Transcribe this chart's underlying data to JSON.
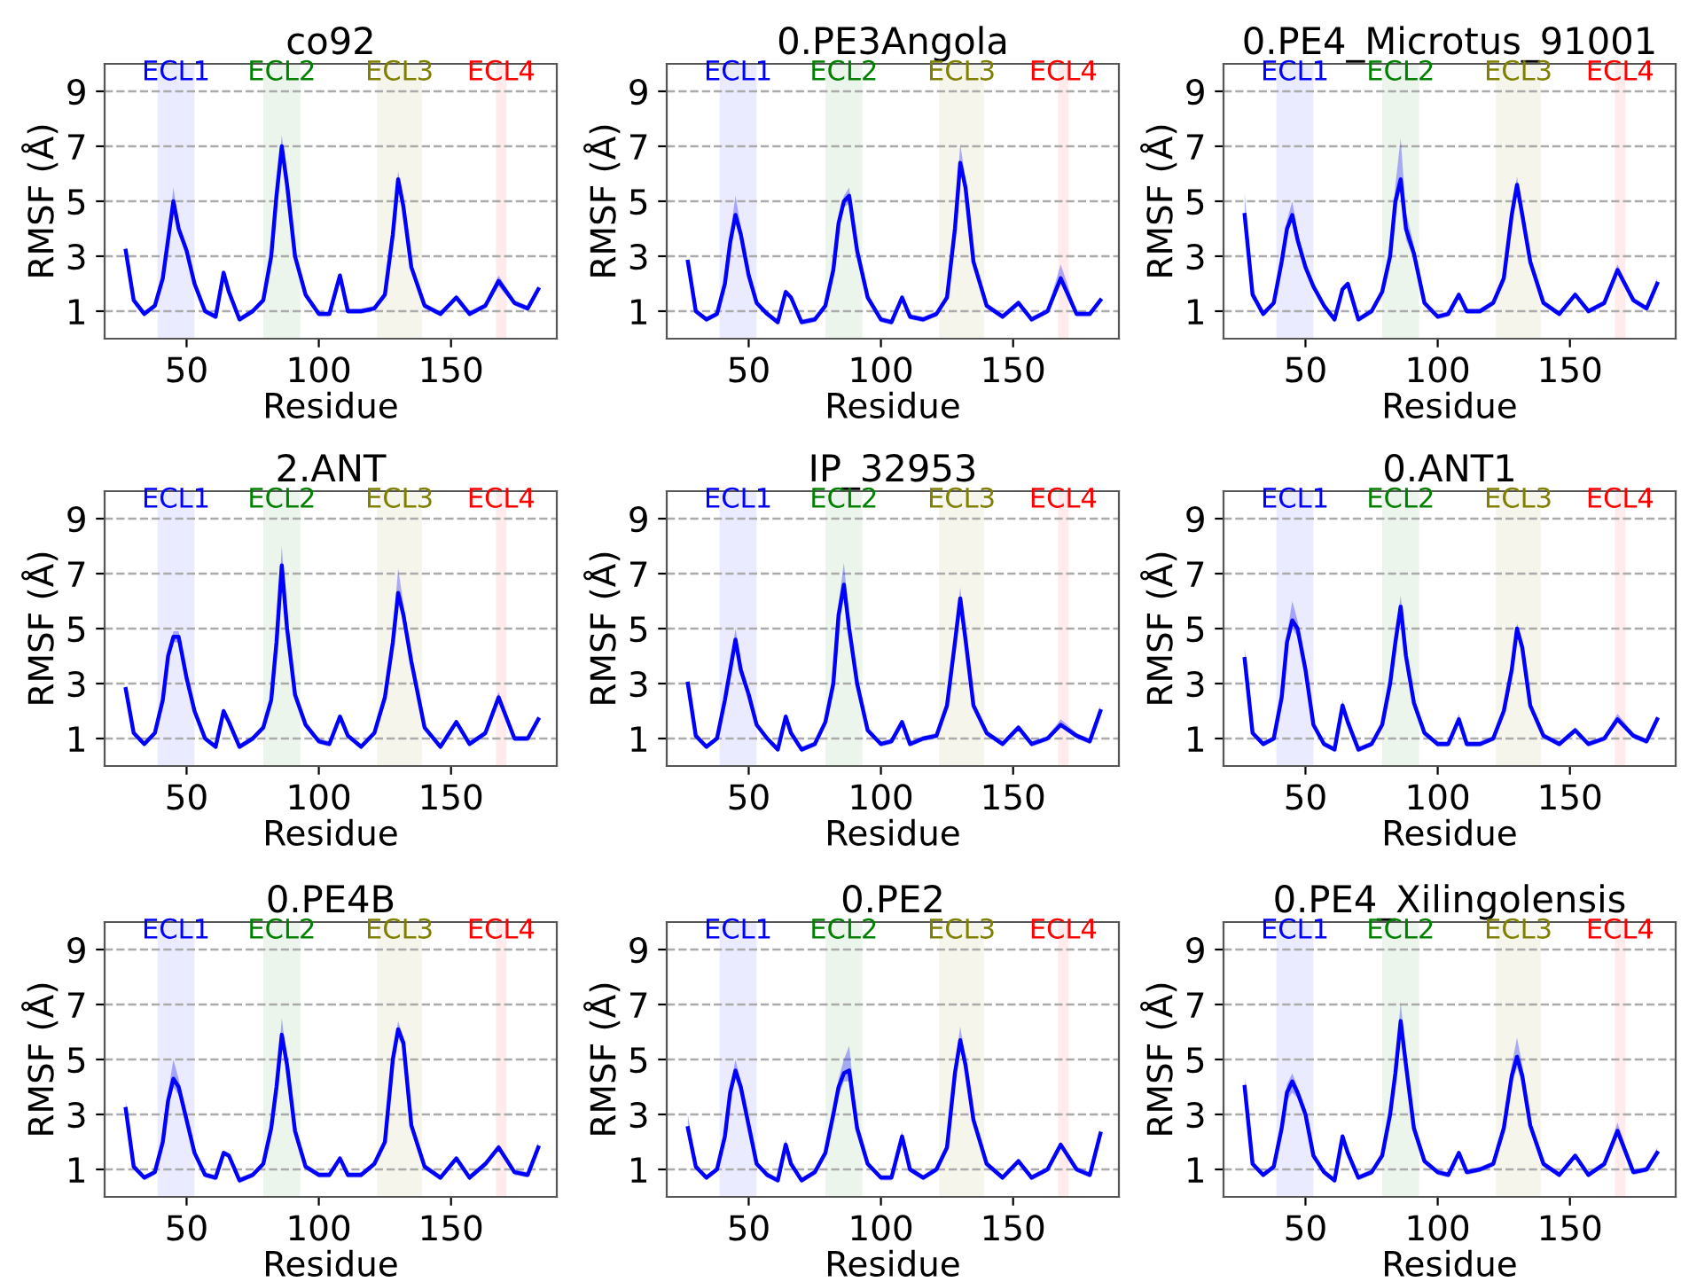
{
  "chart_data": [
    {
      "type": "line",
      "title": "co92",
      "xlabel": "Residue",
      "ylabel": "RMSF (Å)",
      "x": [
        27,
        30,
        34,
        38,
        41,
        43,
        45,
        47,
        50,
        53,
        57,
        61,
        64,
        66,
        70,
        75,
        79,
        82,
        84,
        86,
        88,
        91,
        95,
        100,
        104,
        108,
        111,
        116,
        121,
        125,
        128,
        130,
        132,
        135,
        140,
        146,
        152,
        157,
        163,
        168,
        174,
        179,
        183
      ],
      "xlim": [
        19,
        190
      ],
      "ylim": [
        0,
        10
      ],
      "xticks": [
        50,
        100,
        150
      ],
      "yticks": [
        1,
        3,
        5,
        7,
        9
      ],
      "grid": "y",
      "bands": [
        {
          "axis": "x",
          "from": 39,
          "to": 53,
          "label": "ECL1",
          "color": "#0000ff"
        },
        {
          "axis": "x",
          "from": 79,
          "to": 93,
          "label": "ECL2",
          "color": "#008000"
        },
        {
          "axis": "x",
          "from": 122,
          "to": 139,
          "label": "ECL3",
          "color": "#808000"
        },
        {
          "axis": "x",
          "from": 167,
          "to": 171,
          "label": "ECL4",
          "color": "#ff0000"
        }
      ],
      "series": [
        {
          "color": "#0000ff",
          "values": [
            3.2,
            1.4,
            0.9,
            1.2,
            2.2,
            3.6,
            5.0,
            4.0,
            3.2,
            2.0,
            1.0,
            0.8,
            2.4,
            1.7,
            0.7,
            1.0,
            1.4,
            3.0,
            5.2,
            7.0,
            5.6,
            3.0,
            1.6,
            0.9,
            0.9,
            2.3,
            1.0,
            1.0,
            1.1,
            1.6,
            3.8,
            5.8,
            4.8,
            2.6,
            1.2,
            0.9,
            1.5,
            0.9,
            1.2,
            2.1,
            1.3,
            1.1,
            1.8
          ],
          "upper": [
            3.4,
            1.5,
            1.0,
            1.3,
            2.3,
            3.8,
            5.5,
            4.2,
            3.3,
            2.1,
            1.1,
            0.9,
            2.5,
            1.8,
            0.8,
            1.1,
            1.5,
            3.1,
            5.4,
            7.4,
            5.8,
            3.1,
            1.7,
            1.0,
            1.0,
            2.4,
            1.1,
            1.1,
            1.2,
            1.7,
            3.9,
            6.1,
            5.0,
            2.7,
            1.3,
            1.0,
            1.6,
            1.0,
            1.3,
            2.3,
            1.4,
            1.2,
            1.9
          ],
          "lower": [
            3.0,
            1.3,
            0.8,
            1.1,
            2.1,
            3.4,
            4.7,
            3.8,
            3.1,
            1.9,
            0.9,
            0.7,
            2.3,
            1.6,
            0.6,
            0.9,
            1.3,
            2.9,
            5.0,
            6.7,
            5.4,
            2.9,
            1.5,
            0.8,
            0.8,
            2.2,
            0.9,
            0.9,
            1.0,
            1.5,
            3.7,
            5.5,
            4.6,
            2.5,
            1.1,
            0.8,
            1.4,
            0.8,
            1.1,
            1.9,
            1.2,
            1.0,
            1.7
          ]
        }
      ]
    },
    {
      "type": "line",
      "title": "0.PE3Angola",
      "xlabel": "Residue",
      "ylabel": "RMSF (Å)",
      "x": [
        27,
        30,
        34,
        38,
        41,
        43,
        45,
        47,
        50,
        53,
        57,
        61,
        64,
        66,
        70,
        75,
        79,
        82,
        84,
        86,
        88,
        91,
        95,
        100,
        104,
        108,
        111,
        116,
        121,
        125,
        128,
        130,
        132,
        135,
        140,
        146,
        152,
        157,
        163,
        168,
        174,
        179,
        183
      ],
      "xlim": [
        19,
        190
      ],
      "ylim": [
        0,
        10
      ],
      "xticks": [
        50,
        100,
        150
      ],
      "yticks": [
        1,
        3,
        5,
        7,
        9
      ],
      "grid": "y",
      "bands": [
        {
          "axis": "x",
          "from": 39,
          "to": 53,
          "label": "ECL1",
          "color": "#0000ff"
        },
        {
          "axis": "x",
          "from": 79,
          "to": 93,
          "label": "ECL2",
          "color": "#008000"
        },
        {
          "axis": "x",
          "from": 122,
          "to": 139,
          "label": "ECL3",
          "color": "#808000"
        },
        {
          "axis": "x",
          "from": 167,
          "to": 171,
          "label": "ECL4",
          "color": "#ff0000"
        }
      ],
      "series": [
        {
          "color": "#0000ff",
          "values": [
            2.8,
            1.0,
            0.7,
            0.9,
            2.0,
            3.5,
            4.5,
            3.8,
            2.3,
            1.3,
            0.9,
            0.6,
            1.7,
            1.5,
            0.6,
            0.7,
            1.2,
            2.5,
            4.2,
            5.0,
            5.2,
            3.2,
            1.5,
            0.7,
            0.6,
            1.5,
            0.8,
            0.7,
            0.9,
            1.5,
            4.0,
            6.4,
            5.5,
            2.8,
            1.2,
            0.8,
            1.3,
            0.7,
            1.0,
            2.2,
            0.9,
            0.9,
            1.4
          ],
          "upper": [
            2.9,
            1.1,
            0.8,
            1.0,
            2.1,
            3.8,
            5.2,
            4.1,
            2.4,
            1.4,
            1.0,
            0.7,
            1.8,
            1.6,
            0.7,
            0.8,
            1.3,
            2.6,
            4.4,
            5.2,
            5.5,
            3.4,
            1.6,
            0.8,
            0.7,
            1.6,
            0.9,
            0.8,
            1.0,
            1.6,
            4.2,
            7.1,
            5.8,
            2.9,
            1.3,
            0.9,
            1.4,
            0.8,
            1.1,
            2.7,
            1.0,
            1.0,
            1.5
          ],
          "lower": [
            2.7,
            0.9,
            0.6,
            0.8,
            1.9,
            3.3,
            4.2,
            3.6,
            2.2,
            1.2,
            0.8,
            0.5,
            1.6,
            1.4,
            0.5,
            0.6,
            1.1,
            2.4,
            4.0,
            4.8,
            4.9,
            3.0,
            1.4,
            0.6,
            0.5,
            1.4,
            0.7,
            0.6,
            0.8,
            1.4,
            3.8,
            6.1,
            5.2,
            2.7,
            1.1,
            0.7,
            1.2,
            0.6,
            0.9,
            2.0,
            0.8,
            0.8,
            1.3
          ]
        }
      ]
    },
    {
      "type": "line",
      "title": "0.PE4_Microtus_91001",
      "xlabel": "Residue",
      "ylabel": "RMSF (Å)",
      "x": [
        27,
        30,
        34,
        38,
        41,
        43,
        45,
        47,
        50,
        53,
        57,
        61,
        64,
        66,
        70,
        75,
        79,
        82,
        84,
        86,
        88,
        91,
        95,
        100,
        104,
        108,
        111,
        116,
        121,
        125,
        128,
        130,
        132,
        135,
        140,
        146,
        152,
        157,
        163,
        168,
        174,
        179,
        183
      ],
      "xlim": [
        19,
        190
      ],
      "ylim": [
        0,
        10
      ],
      "xticks": [
        50,
        100,
        150
      ],
      "yticks": [
        1,
        3,
        5,
        7,
        9
      ],
      "grid": "y",
      "bands": [
        {
          "axis": "x",
          "from": 39,
          "to": 53,
          "label": "ECL1",
          "color": "#0000ff"
        },
        {
          "axis": "x",
          "from": 79,
          "to": 93,
          "label": "ECL2",
          "color": "#008000"
        },
        {
          "axis": "x",
          "from": 122,
          "to": 139,
          "label": "ECL3",
          "color": "#808000"
        },
        {
          "axis": "x",
          "from": 167,
          "to": 171,
          "label": "ECL4",
          "color": "#ff0000"
        }
      ],
      "series": [
        {
          "color": "#0000ff",
          "values": [
            4.5,
            1.6,
            0.9,
            1.3,
            2.8,
            4.0,
            4.5,
            3.6,
            2.6,
            1.9,
            1.2,
            0.7,
            1.8,
            2.0,
            0.7,
            1.0,
            1.7,
            3.0,
            5.0,
            5.8,
            4.0,
            3.1,
            1.3,
            0.8,
            0.9,
            1.6,
            1.0,
            1.0,
            1.3,
            2.2,
            4.5,
            5.6,
            4.5,
            2.8,
            1.3,
            0.9,
            1.6,
            1.0,
            1.3,
            2.5,
            1.4,
            1.1,
            2.0
          ],
          "upper": [
            5.3,
            1.8,
            1.0,
            1.4,
            2.9,
            4.3,
            5.0,
            3.9,
            2.7,
            2.0,
            1.3,
            0.8,
            1.9,
            2.1,
            0.8,
            1.1,
            1.8,
            3.2,
            5.6,
            7.3,
            4.6,
            3.4,
            1.4,
            0.9,
            1.0,
            1.7,
            1.1,
            1.1,
            1.4,
            2.4,
            4.7,
            5.9,
            4.7,
            2.9,
            1.4,
            1.0,
            1.7,
            1.1,
            1.4,
            2.7,
            1.5,
            1.2,
            2.2
          ],
          "lower": [
            4.3,
            1.5,
            0.8,
            1.2,
            2.7,
            3.8,
            4.3,
            3.4,
            2.5,
            1.8,
            1.1,
            0.6,
            1.7,
            1.9,
            0.6,
            0.9,
            1.6,
            2.8,
            4.6,
            5.4,
            3.6,
            2.9,
            1.2,
            0.7,
            0.8,
            1.5,
            0.9,
            0.9,
            1.2,
            2.0,
            4.3,
            5.4,
            4.3,
            2.7,
            1.2,
            0.8,
            1.5,
            0.9,
            1.2,
            2.4,
            1.3,
            1.0,
            1.9
          ]
        }
      ]
    },
    {
      "type": "line",
      "title": "2.ANT",
      "xlabel": "Residue",
      "ylabel": "RMSF (Å)",
      "x": [
        27,
        30,
        34,
        38,
        41,
        43,
        45,
        47,
        50,
        53,
        57,
        61,
        64,
        66,
        70,
        75,
        79,
        82,
        84,
        86,
        88,
        91,
        95,
        100,
        104,
        108,
        111,
        116,
        121,
        125,
        128,
        130,
        132,
        135,
        140,
        146,
        152,
        157,
        163,
        168,
        174,
        179,
        183
      ],
      "xlim": [
        19,
        190
      ],
      "ylim": [
        0,
        10
      ],
      "xticks": [
        50,
        100,
        150
      ],
      "yticks": [
        1,
        3,
        5,
        7,
        9
      ],
      "grid": "y",
      "bands": [
        {
          "axis": "x",
          "from": 39,
          "to": 53,
          "label": "ECL1",
          "color": "#0000ff"
        },
        {
          "axis": "x",
          "from": 79,
          "to": 93,
          "label": "ECL2",
          "color": "#008000"
        },
        {
          "axis": "x",
          "from": 122,
          "to": 139,
          "label": "ECL3",
          "color": "#808000"
        },
        {
          "axis": "x",
          "from": 167,
          "to": 171,
          "label": "ECL4",
          "color": "#ff0000"
        }
      ],
      "series": [
        {
          "color": "#0000ff",
          "values": [
            2.8,
            1.2,
            0.8,
            1.2,
            2.4,
            4.0,
            4.7,
            4.7,
            3.2,
            2.0,
            1.0,
            0.7,
            2.0,
            1.6,
            0.7,
            1.0,
            1.4,
            2.4,
            4.5,
            7.3,
            5.0,
            2.6,
            1.5,
            0.9,
            0.8,
            1.8,
            1.1,
            0.7,
            1.2,
            2.5,
            4.5,
            6.3,
            5.5,
            3.8,
            1.4,
            0.7,
            1.6,
            0.8,
            1.2,
            2.5,
            1.0,
            1.0,
            1.7
          ],
          "upper": [
            2.9,
            1.3,
            0.9,
            1.3,
            2.5,
            4.1,
            4.9,
            4.9,
            3.3,
            2.1,
            1.1,
            0.8,
            2.1,
            1.7,
            0.8,
            1.1,
            1.5,
            2.6,
            4.8,
            8.0,
            5.2,
            2.7,
            1.6,
            1.0,
            0.9,
            1.9,
            1.2,
            0.8,
            1.3,
            2.7,
            4.8,
            7.2,
            5.9,
            4.0,
            1.5,
            0.8,
            1.7,
            0.9,
            1.3,
            2.7,
            1.1,
            1.1,
            1.8
          ],
          "lower": [
            2.7,
            1.1,
            0.7,
            1.1,
            2.3,
            3.9,
            4.5,
            4.5,
            3.1,
            1.9,
            0.9,
            0.6,
            1.9,
            1.5,
            0.6,
            0.9,
            1.3,
            2.3,
            4.3,
            7.0,
            4.8,
            2.5,
            1.4,
            0.8,
            0.7,
            1.7,
            1.0,
            0.6,
            1.1,
            2.3,
            4.3,
            6.0,
            5.2,
            3.6,
            1.3,
            0.6,
            1.5,
            0.7,
            1.1,
            2.3,
            0.9,
            0.9,
            1.6
          ]
        }
      ]
    },
    {
      "type": "line",
      "title": "IP_32953",
      "xlabel": "Residue",
      "ylabel": "RMSF (Å)",
      "x": [
        27,
        30,
        34,
        38,
        41,
        43,
        45,
        47,
        50,
        53,
        57,
        61,
        64,
        66,
        70,
        75,
        79,
        82,
        84,
        86,
        88,
        91,
        95,
        100,
        104,
        108,
        111,
        116,
        121,
        125,
        128,
        130,
        132,
        135,
        140,
        146,
        152,
        157,
        163,
        168,
        174,
        179,
        183
      ],
      "xlim": [
        19,
        190
      ],
      "ylim": [
        0,
        10
      ],
      "xticks": [
        50,
        100,
        150
      ],
      "yticks": [
        1,
        3,
        5,
        7,
        9
      ],
      "grid": "y",
      "bands": [
        {
          "axis": "x",
          "from": 39,
          "to": 53,
          "label": "ECL1",
          "color": "#0000ff"
        },
        {
          "axis": "x",
          "from": 79,
          "to": 93,
          "label": "ECL2",
          "color": "#008000"
        },
        {
          "axis": "x",
          "from": 122,
          "to": 139,
          "label": "ECL3",
          "color": "#808000"
        },
        {
          "axis": "x",
          "from": 167,
          "to": 171,
          "label": "ECL4",
          "color": "#ff0000"
        }
      ],
      "series": [
        {
          "color": "#0000ff",
          "values": [
            3.0,
            1.1,
            0.7,
            1.0,
            2.4,
            3.5,
            4.6,
            3.5,
            2.6,
            1.5,
            1.0,
            0.6,
            1.8,
            1.2,
            0.6,
            0.8,
            1.6,
            3.0,
            5.5,
            6.6,
            5.0,
            3.0,
            1.3,
            0.8,
            0.9,
            1.6,
            0.8,
            1.0,
            1.1,
            2.2,
            4.5,
            6.1,
            4.6,
            2.2,
            1.2,
            0.8,
            1.4,
            0.8,
            1.0,
            1.5,
            1.1,
            0.9,
            2.0
          ],
          "upper": [
            3.1,
            1.2,
            0.8,
            1.1,
            2.5,
            3.7,
            5.0,
            3.8,
            2.7,
            1.6,
            1.1,
            0.7,
            1.9,
            1.3,
            0.7,
            0.9,
            1.7,
            3.2,
            5.9,
            7.4,
            5.4,
            3.2,
            1.4,
            0.9,
            1.0,
            1.7,
            0.9,
            1.1,
            1.2,
            2.3,
            4.7,
            6.5,
            4.8,
            2.3,
            1.3,
            0.9,
            1.5,
            0.9,
            1.1,
            1.7,
            1.2,
            1.0,
            2.2
          ],
          "lower": [
            2.9,
            1.0,
            0.6,
            0.9,
            2.3,
            3.3,
            4.3,
            3.3,
            2.5,
            1.4,
            0.9,
            0.5,
            1.7,
            1.1,
            0.5,
            0.7,
            1.5,
            2.8,
            5.1,
            6.1,
            4.7,
            2.8,
            1.2,
            0.7,
            0.8,
            1.5,
            0.7,
            0.9,
            1.0,
            2.1,
            4.3,
            5.8,
            4.4,
            2.1,
            1.1,
            0.7,
            1.3,
            0.7,
            0.9,
            1.4,
            1.0,
            0.8,
            1.9
          ]
        }
      ]
    },
    {
      "type": "line",
      "title": "0.ANT1",
      "xlabel": "Residue",
      "ylabel": "RMSF (Å)",
      "x": [
        27,
        30,
        34,
        38,
        41,
        43,
        45,
        47,
        50,
        53,
        57,
        61,
        64,
        66,
        70,
        75,
        79,
        82,
        84,
        86,
        88,
        91,
        95,
        100,
        104,
        108,
        111,
        116,
        121,
        125,
        128,
        130,
        132,
        135,
        140,
        146,
        152,
        157,
        163,
        168,
        174,
        179,
        183
      ],
      "xlim": [
        19,
        190
      ],
      "ylim": [
        0,
        10
      ],
      "xticks": [
        50,
        100,
        150
      ],
      "yticks": [
        1,
        3,
        5,
        7,
        9
      ],
      "grid": "y",
      "bands": [
        {
          "axis": "x",
          "from": 39,
          "to": 53,
          "label": "ECL1",
          "color": "#0000ff"
        },
        {
          "axis": "x",
          "from": 79,
          "to": 93,
          "label": "ECL2",
          "color": "#008000"
        },
        {
          "axis": "x",
          "from": 122,
          "to": 139,
          "label": "ECL3",
          "color": "#808000"
        },
        {
          "axis": "x",
          "from": 167,
          "to": 171,
          "label": "ECL4",
          "color": "#ff0000"
        }
      ],
      "series": [
        {
          "color": "#0000ff",
          "values": [
            3.9,
            1.2,
            0.8,
            1.0,
            2.5,
            4.5,
            5.3,
            5.0,
            3.5,
            1.5,
            0.8,
            0.6,
            2.2,
            1.6,
            0.6,
            0.8,
            1.5,
            3.0,
            4.5,
            5.8,
            4.0,
            2.3,
            1.2,
            0.8,
            0.8,
            1.7,
            0.8,
            0.8,
            1.0,
            2.0,
            3.5,
            5.0,
            4.3,
            2.2,
            1.1,
            0.8,
            1.3,
            0.8,
            1.0,
            1.7,
            1.1,
            0.9,
            1.7
          ],
          "upper": [
            4.3,
            1.3,
            0.9,
            1.1,
            2.6,
            4.8,
            6.0,
            5.3,
            3.7,
            1.6,
            0.9,
            0.7,
            2.4,
            1.7,
            0.7,
            0.9,
            1.6,
            3.2,
            4.7,
            6.2,
            4.3,
            2.4,
            1.3,
            0.9,
            0.9,
            1.9,
            0.9,
            0.9,
            1.1,
            2.2,
            3.7,
            5.2,
            4.5,
            2.3,
            1.2,
            0.9,
            1.4,
            0.9,
            1.1,
            1.9,
            1.2,
            1.0,
            1.8
          ],
          "lower": [
            3.7,
            1.1,
            0.7,
            0.9,
            2.4,
            4.3,
            5.0,
            4.7,
            3.3,
            1.4,
            0.7,
            0.5,
            2.1,
            1.5,
            0.5,
            0.7,
            1.4,
            2.8,
            4.3,
            5.5,
            3.8,
            2.2,
            1.1,
            0.7,
            0.7,
            1.6,
            0.7,
            0.7,
            0.9,
            1.9,
            3.3,
            4.8,
            4.1,
            2.1,
            1.0,
            0.7,
            1.2,
            0.7,
            0.9,
            1.6,
            1.0,
            0.8,
            1.6
          ]
        }
      ]
    },
    {
      "type": "line",
      "title": "0.PE4B",
      "xlabel": "Residue",
      "ylabel": "RMSF (Å)",
      "x": [
        27,
        30,
        34,
        38,
        41,
        43,
        45,
        47,
        50,
        53,
        57,
        61,
        64,
        66,
        70,
        75,
        79,
        82,
        84,
        86,
        88,
        91,
        95,
        100,
        104,
        108,
        111,
        116,
        121,
        125,
        128,
        130,
        132,
        135,
        140,
        146,
        152,
        157,
        163,
        168,
        174,
        179,
        183
      ],
      "xlim": [
        19,
        190
      ],
      "ylim": [
        0,
        10
      ],
      "xticks": [
        50,
        100,
        150
      ],
      "yticks": [
        1,
        3,
        5,
        7,
        9
      ],
      "grid": "y",
      "bands": [
        {
          "axis": "x",
          "from": 39,
          "to": 53,
          "label": "ECL1",
          "color": "#0000ff"
        },
        {
          "axis": "x",
          "from": 79,
          "to": 93,
          "label": "ECL2",
          "color": "#008000"
        },
        {
          "axis": "x",
          "from": 122,
          "to": 139,
          "label": "ECL3",
          "color": "#808000"
        },
        {
          "axis": "x",
          "from": 167,
          "to": 171,
          "label": "ECL4",
          "color": "#ff0000"
        }
      ],
      "series": [
        {
          "color": "#0000ff",
          "values": [
            3.2,
            1.1,
            0.7,
            0.9,
            2.0,
            3.5,
            4.3,
            4.0,
            2.8,
            1.6,
            0.8,
            0.7,
            1.6,
            1.5,
            0.6,
            0.8,
            1.2,
            2.5,
            4.0,
            5.9,
            4.8,
            2.4,
            1.1,
            0.8,
            0.8,
            1.4,
            0.8,
            0.8,
            1.2,
            2.0,
            5.0,
            6.1,
            5.6,
            2.6,
            1.1,
            0.7,
            1.4,
            0.7,
            1.2,
            1.8,
            0.9,
            0.8,
            1.8
          ],
          "upper": [
            3.5,
            1.2,
            0.8,
            1.0,
            2.1,
            3.8,
            5.0,
            4.3,
            3.0,
            1.7,
            0.9,
            0.8,
            1.7,
            1.6,
            0.7,
            0.9,
            1.3,
            2.7,
            4.3,
            6.5,
            5.0,
            2.5,
            1.2,
            0.9,
            0.9,
            1.5,
            0.9,
            0.9,
            1.3,
            2.1,
            5.2,
            6.4,
            5.8,
            2.8,
            1.2,
            0.8,
            1.5,
            0.8,
            1.3,
            1.9,
            1.0,
            0.9,
            2.0
          ],
          "lower": [
            3.0,
            1.0,
            0.6,
            0.8,
            1.9,
            3.3,
            4.0,
            3.7,
            2.6,
            1.5,
            0.7,
            0.6,
            1.5,
            1.4,
            0.5,
            0.7,
            1.1,
            2.3,
            3.8,
            5.6,
            4.6,
            2.3,
            1.0,
            0.7,
            0.7,
            1.3,
            0.7,
            0.7,
            1.1,
            1.9,
            4.8,
            5.8,
            5.4,
            2.5,
            1.0,
            0.6,
            1.3,
            0.6,
            1.1,
            1.7,
            0.8,
            0.7,
            1.7
          ]
        }
      ]
    },
    {
      "type": "line",
      "title": "0.PE2",
      "xlabel": "Residue",
      "ylabel": "RMSF (Å)",
      "x": [
        27,
        30,
        34,
        38,
        41,
        43,
        45,
        47,
        50,
        53,
        57,
        61,
        64,
        66,
        70,
        75,
        79,
        82,
        84,
        86,
        88,
        91,
        95,
        100,
        104,
        108,
        111,
        116,
        121,
        125,
        128,
        130,
        132,
        135,
        140,
        146,
        152,
        157,
        163,
        168,
        174,
        179,
        183
      ],
      "xlim": [
        19,
        190
      ],
      "ylim": [
        0,
        10
      ],
      "xticks": [
        50,
        100,
        150
      ],
      "yticks": [
        1,
        3,
        5,
        7,
        9
      ],
      "grid": "y",
      "bands": [
        {
          "axis": "x",
          "from": 39,
          "to": 53,
          "label": "ECL1",
          "color": "#0000ff"
        },
        {
          "axis": "x",
          "from": 79,
          "to": 93,
          "label": "ECL2",
          "color": "#008000"
        },
        {
          "axis": "x",
          "from": 122,
          "to": 139,
          "label": "ECL3",
          "color": "#808000"
        },
        {
          "axis": "x",
          "from": 167,
          "to": 171,
          "label": "ECL4",
          "color": "#ff0000"
        }
      ],
      "series": [
        {
          "color": "#0000ff",
          "values": [
            2.5,
            1.1,
            0.7,
            1.0,
            2.2,
            3.8,
            4.6,
            4.0,
            2.6,
            1.2,
            0.8,
            0.6,
            1.9,
            1.2,
            0.6,
            0.9,
            1.6,
            3.0,
            4.0,
            4.5,
            4.6,
            2.5,
            1.2,
            0.7,
            0.7,
            2.2,
            1.0,
            0.7,
            1.0,
            1.8,
            4.5,
            5.7,
            4.8,
            2.8,
            1.2,
            0.7,
            1.3,
            0.7,
            1.0,
            1.9,
            1.0,
            0.8,
            2.3
          ],
          "upper": [
            3.0,
            1.2,
            0.8,
            1.1,
            2.3,
            4.0,
            5.0,
            4.2,
            2.7,
            1.3,
            0.9,
            0.7,
            2.1,
            1.3,
            0.7,
            1.0,
            1.7,
            3.2,
            4.3,
            5.0,
            5.5,
            2.7,
            1.3,
            0.8,
            0.8,
            2.4,
            1.1,
            0.8,
            1.1,
            1.9,
            4.7,
            6.2,
            5.0,
            2.9,
            1.3,
            0.8,
            1.4,
            0.8,
            1.1,
            2.0,
            1.1,
            0.9,
            2.5
          ],
          "lower": [
            2.4,
            1.0,
            0.6,
            0.9,
            2.1,
            3.6,
            4.3,
            3.8,
            2.5,
            1.1,
            0.7,
            0.5,
            1.8,
            1.1,
            0.5,
            0.8,
            1.5,
            2.8,
            3.7,
            4.2,
            4.2,
            2.4,
            1.1,
            0.6,
            0.6,
            2.0,
            0.9,
            0.6,
            0.9,
            1.7,
            4.3,
            5.4,
            4.6,
            2.7,
            1.1,
            0.6,
            1.2,
            0.6,
            0.9,
            1.8,
            0.9,
            0.7,
            2.2
          ]
        }
      ]
    },
    {
      "type": "line",
      "title": "0.PE4_Xilingolensis",
      "xlabel": "Residue",
      "ylabel": "RMSF (Å)",
      "x": [
        27,
        30,
        34,
        38,
        41,
        43,
        45,
        47,
        50,
        53,
        57,
        61,
        64,
        66,
        70,
        75,
        79,
        82,
        84,
        86,
        88,
        91,
        95,
        100,
        104,
        108,
        111,
        116,
        121,
        125,
        128,
        130,
        132,
        135,
        140,
        146,
        152,
        157,
        163,
        168,
        174,
        179,
        183
      ],
      "xlim": [
        19,
        190
      ],
      "ylim": [
        0,
        10
      ],
      "xticks": [
        50,
        100,
        150
      ],
      "yticks": [
        1,
        3,
        5,
        7,
        9
      ],
      "grid": "y",
      "bands": [
        {
          "axis": "x",
          "from": 39,
          "to": 53,
          "label": "ECL1",
          "color": "#0000ff"
        },
        {
          "axis": "x",
          "from": 79,
          "to": 93,
          "label": "ECL2",
          "color": "#008000"
        },
        {
          "axis": "x",
          "from": 122,
          "to": 139,
          "label": "ECL3",
          "color": "#808000"
        },
        {
          "axis": "x",
          "from": 167,
          "to": 171,
          "label": "ECL4",
          "color": "#ff0000"
        }
      ],
      "series": [
        {
          "color": "#0000ff",
          "values": [
            4.0,
            1.2,
            0.8,
            1.1,
            2.5,
            3.8,
            4.2,
            3.8,
            3.0,
            1.5,
            0.9,
            0.6,
            2.2,
            1.6,
            0.7,
            0.9,
            1.5,
            3.0,
            4.5,
            6.4,
            4.8,
            2.5,
            1.3,
            0.9,
            0.8,
            1.6,
            0.9,
            1.0,
            1.2,
            2.5,
            4.4,
            5.1,
            4.4,
            2.6,
            1.2,
            0.8,
            1.5,
            0.8,
            1.2,
            2.4,
            0.9,
            1.0,
            1.6
          ],
          "upper": [
            4.4,
            1.3,
            0.9,
            1.2,
            2.7,
            4.1,
            4.5,
            4.0,
            3.2,
            1.6,
            1.0,
            0.7,
            2.3,
            1.7,
            0.8,
            1.0,
            1.6,
            3.2,
            4.8,
            7.1,
            5.1,
            2.7,
            1.4,
            1.0,
            0.9,
            1.7,
            1.0,
            1.1,
            1.3,
            2.7,
            4.8,
            5.8,
            4.8,
            2.8,
            1.3,
            0.9,
            1.6,
            0.9,
            1.3,
            2.7,
            1.0,
            1.1,
            1.8
          ],
          "lower": [
            3.8,
            1.1,
            0.7,
            1.0,
            2.3,
            3.5,
            3.8,
            3.6,
            2.8,
            1.4,
            0.8,
            0.5,
            2.1,
            1.5,
            0.6,
            0.8,
            1.4,
            2.8,
            4.3,
            6.0,
            4.5,
            2.3,
            1.2,
            0.8,
            0.7,
            1.5,
            0.8,
            0.9,
            1.1,
            2.3,
            4.1,
            4.7,
            4.1,
            2.4,
            1.1,
            0.7,
            1.4,
            0.7,
            1.1,
            2.2,
            0.8,
            0.9,
            1.5
          ]
        }
      ]
    }
  ]
}
